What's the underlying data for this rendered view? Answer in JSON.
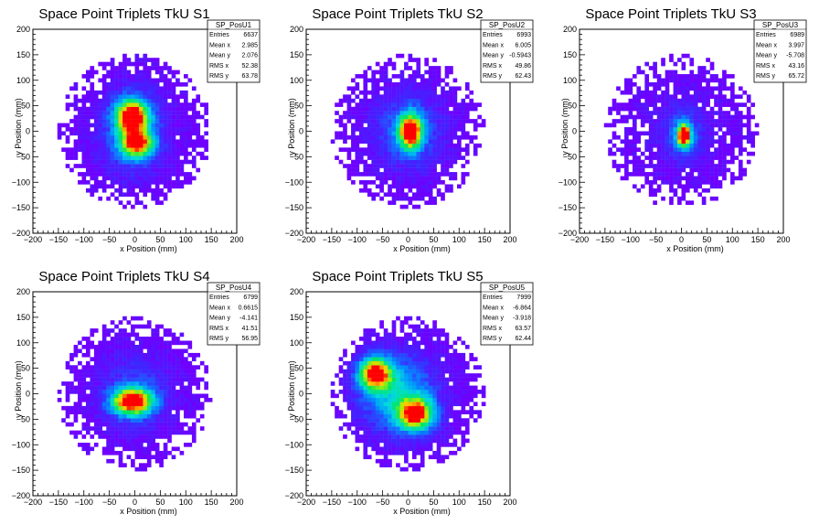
{
  "chart_data": [
    {
      "type": "heatmap",
      "title": "Space Point Triplets TkU S1",
      "xlabel": "x Position (mm)",
      "ylabel": "y Position (mm)",
      "xlim": [
        -200,
        200
      ],
      "ylim": [
        -200,
        200
      ],
      "xticks": [
        "−200",
        "−150",
        "−100",
        "−50",
        "0",
        "50",
        "100",
        "150",
        "200"
      ],
      "yticks": [
        "200",
        "150",
        "100",
        "50",
        "0",
        "−50",
        "−100",
        "−150",
        "−200"
      ],
      "stats": {
        "name": "SP_PosU1",
        "rows": [
          {
            "label": "Entries",
            "value": "6637"
          },
          {
            "label": "Mean x",
            "value": "2.985"
          },
          {
            "label": "Mean y",
            "value": "2.076"
          },
          {
            "label": "RMS x",
            "value": "52.38"
          },
          {
            "label": "RMS y",
            "value": "63.78"
          }
        ]
      },
      "distribution": {
        "radius": 150,
        "hotspots": [
          {
            "x": -5,
            "y": 30,
            "sx": 22,
            "sy": 22,
            "w": 1.0
          },
          {
            "x": 5,
            "y": -25,
            "sx": 22,
            "sy": 18,
            "w": 0.85
          },
          {
            "x": -5,
            "y": 0,
            "sx": 45,
            "sy": 60,
            "w": 0.35
          }
        ],
        "density": 0.95
      }
    },
    {
      "type": "heatmap",
      "title": "Space Point Triplets TkU S2",
      "xlabel": "x Position (mm)",
      "ylabel": "y Position (mm)",
      "xlim": [
        -200,
        200
      ],
      "ylim": [
        -200,
        200
      ],
      "xticks": [
        "−200",
        "−150",
        "−100",
        "−50",
        "0",
        "50",
        "100",
        "150",
        "200"
      ],
      "yticks": [
        "200",
        "150",
        "100",
        "50",
        "0",
        "−50",
        "−100",
        "−150",
        "−200"
      ],
      "stats": {
        "name": "SP_PosU2",
        "rows": [
          {
            "label": "Entries",
            "value": "6993"
          },
          {
            "label": "Mean x",
            "value": "6.005"
          },
          {
            "label": "Mean y",
            "value": "-0.5943"
          },
          {
            "label": "RMS x",
            "value": "49.86"
          },
          {
            "label": "RMS y",
            "value": "62.43"
          }
        ]
      },
      "distribution": {
        "radius": 150,
        "hotspots": [
          {
            "x": 5,
            "y": 0,
            "sx": 16,
            "sy": 24,
            "w": 1.0
          },
          {
            "x": 0,
            "y": 0,
            "sx": 50,
            "sy": 55,
            "w": 0.3
          }
        ],
        "density": 0.9
      }
    },
    {
      "type": "heatmap",
      "title": "Space Point Triplets TkU S3",
      "xlabel": "x Position (mm)",
      "ylabel": "y Position (mm)",
      "xlim": [
        -200,
        200
      ],
      "ylim": [
        -200,
        200
      ],
      "xticks": [
        "−200",
        "−150",
        "−100",
        "−50",
        "0",
        "50",
        "100",
        "150",
        "200"
      ],
      "yticks": [
        "200",
        "150",
        "100",
        "50",
        "0",
        "−50",
        "−100",
        "−150",
        "−200"
      ],
      "stats": {
        "name": "SP_PosU3",
        "rows": [
          {
            "label": "Entries",
            "value": "6989"
          },
          {
            "label": "Mean x",
            "value": "3.997"
          },
          {
            "label": "Mean y",
            "value": "-5.708"
          },
          {
            "label": "RMS x",
            "value": "43.16"
          },
          {
            "label": "RMS y",
            "value": "65.72"
          }
        ]
      },
      "distribution": {
        "radius": 150,
        "hotspots": [
          {
            "x": 5,
            "y": -8,
            "sx": 8,
            "sy": 14,
            "w": 1.0
          },
          {
            "x": 5,
            "y": -8,
            "sx": 18,
            "sy": 28,
            "w": 0.35
          },
          {
            "x": 0,
            "y": 0,
            "sx": 60,
            "sy": 60,
            "w": 0.12
          }
        ],
        "density": 0.82
      }
    },
    {
      "type": "heatmap",
      "title": "Space Point Triplets TkU S4",
      "xlabel": "x Position (mm)",
      "ylabel": "y Position (mm)",
      "xlim": [
        -200,
        200
      ],
      "ylim": [
        -200,
        200
      ],
      "xticks": [
        "−200",
        "−150",
        "−100",
        "−50",
        "0",
        "50",
        "100",
        "150",
        "200"
      ],
      "yticks": [
        "200",
        "150",
        "100",
        "50",
        "0",
        "−50",
        "−100",
        "−150",
        "−200"
      ],
      "stats": {
        "name": "SP_PosU4",
        "rows": [
          {
            "label": "Entries",
            "value": "6799"
          },
          {
            "label": "Mean x",
            "value": "0.6615"
          },
          {
            "label": "Mean y",
            "value": "-4.141"
          },
          {
            "label": "RMS x",
            "value": "41.51"
          },
          {
            "label": "RMS y",
            "value": "56.95"
          }
        ]
      },
      "distribution": {
        "radius": 150,
        "hotspots": [
          {
            "x": -5,
            "y": -15,
            "sx": 28,
            "sy": 18,
            "w": 1.0
          },
          {
            "x": 0,
            "y": 0,
            "sx": 50,
            "sy": 55,
            "w": 0.25
          }
        ],
        "density": 0.92
      }
    },
    {
      "type": "heatmap",
      "title": "Space Point Triplets TkU S5",
      "xlabel": "x Position (mm)",
      "ylabel": "y Position (mm)",
      "xlim": [
        -200,
        200
      ],
      "ylim": [
        -200,
        200
      ],
      "xticks": [
        "−200",
        "−150",
        "−100",
        "−50",
        "0",
        "50",
        "100",
        "150",
        "200"
      ],
      "yticks": [
        "200",
        "150",
        "100",
        "50",
        "0",
        "−50",
        "−100",
        "−150",
        "−200"
      ],
      "stats": {
        "name": "SP_PosU5",
        "rows": [
          {
            "label": "Entries",
            "value": "7999"
          },
          {
            "label": "Mean x",
            "value": "-6.864"
          },
          {
            "label": "Mean y",
            "value": "-3.918"
          },
          {
            "label": "RMS x",
            "value": "63.57"
          },
          {
            "label": "RMS y",
            "value": "62.44"
          }
        ]
      },
      "distribution": {
        "radius": 150,
        "hotspots": [
          {
            "x": -65,
            "y": 40,
            "sx": 22,
            "sy": 22,
            "w": 1.0
          },
          {
            "x": 15,
            "y": -40,
            "sx": 25,
            "sy": 22,
            "w": 0.9
          },
          {
            "x": -20,
            "y": 0,
            "sx": 55,
            "sy": 55,
            "w": 0.45
          }
        ],
        "density": 0.95
      }
    }
  ]
}
